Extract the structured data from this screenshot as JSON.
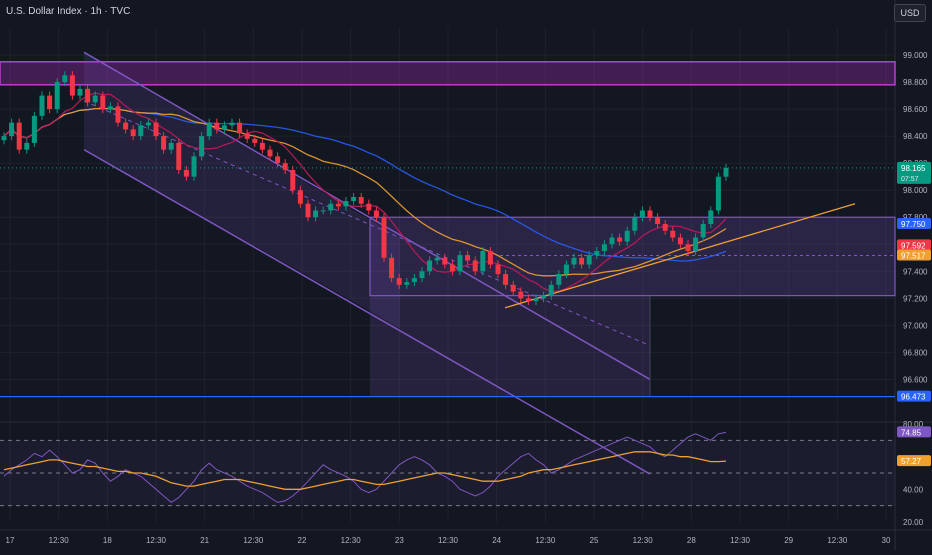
{
  "header": {
    "symbol_title": "U.S. Dollar Index · 1h · TVC",
    "currency": "USD"
  },
  "chart_data": [
    {
      "type": "candlestick",
      "title": "U.S. Dollar Index · 1h · TVC",
      "ylim": [
        96.3,
        99.2
      ],
      "y_ticks": [
        "99.000",
        "98.800",
        "98.600",
        "98.400",
        "98.200",
        "98.000",
        "97.800",
        "97.600",
        "97.400",
        "97.200",
        "97.000",
        "96.800",
        "96.600"
      ],
      "x_ticks": [
        "17",
        "12:30",
        "18",
        "12:30",
        "21",
        "12:30",
        "22",
        "12:30",
        "23",
        "12:30",
        "24",
        "12:30",
        "25",
        "12:30",
        "28",
        "12:30",
        "29",
        "12:30",
        "30"
      ],
      "price_labels": [
        {
          "value": 98.165,
          "label": "98.165",
          "sublabel": "07:57",
          "color": "#089981"
        },
        {
          "value": 97.75,
          "label": "97.750",
          "color": "#2962ff"
        },
        {
          "value": 97.592,
          "label": "97.592",
          "color": "#f23645"
        },
        {
          "value": 97.517,
          "label": "97.517",
          "color": "#f0a030"
        },
        {
          "value": 96.473,
          "label": "96.473",
          "color": "#2962ff"
        }
      ],
      "resistance_zone": [
        98.78,
        98.95
      ],
      "range_box": [
        97.22,
        97.8
      ],
      "horizontal_line": 96.473,
      "price_path": [
        98.4,
        98.5,
        98.3,
        98.35,
        98.55,
        98.7,
        98.6,
        98.8,
        98.85,
        98.7,
        98.75,
        98.65,
        98.7,
        98.6,
        98.62,
        98.5,
        98.45,
        98.4,
        98.48,
        98.5,
        98.4,
        98.3,
        98.35,
        98.15,
        98.1,
        98.25,
        98.4,
        98.5,
        98.45,
        98.48,
        98.5,
        98.42,
        98.38,
        98.35,
        98.3,
        98.25,
        98.2,
        98.15,
        98.0,
        97.9,
        97.8,
        97.85,
        97.85,
        97.9,
        97.88,
        97.92,
        97.95,
        97.9,
        97.85,
        97.8,
        97.5,
        97.35,
        97.3,
        97.32,
        97.35,
        97.4,
        97.48,
        97.5,
        97.45,
        97.4,
        97.52,
        97.48,
        97.4,
        97.55,
        97.45,
        97.38,
        97.3,
        97.25,
        97.2,
        97.18,
        97.2,
        97.22,
        97.3,
        97.38,
        97.45,
        97.5,
        97.45,
        97.52,
        97.55,
        97.6,
        97.65,
        97.62,
        97.7,
        97.8,
        97.85,
        97.8,
        97.75,
        97.7,
        97.65,
        97.6,
        97.55,
        97.65,
        97.75,
        97.85,
        98.1,
        98.165
      ]
    },
    {
      "type": "line",
      "title": "",
      "ylim": [
        20,
        80
      ],
      "y_ticks": [
        "80.00",
        "40.00",
        "20.00"
      ],
      "levels": [
        70,
        50,
        30
      ],
      "value_labels": [
        {
          "value": 74.85,
          "label": "74.85",
          "color": "#7e57c2"
        },
        {
          "value": 57.27,
          "label": "57.27",
          "color": "#f0a030"
        }
      ],
      "series": [
        {
          "color": "#7e57c2",
          "values": [
            48,
            52,
            55,
            58,
            62,
            60,
            64,
            60,
            55,
            50,
            52,
            58,
            56,
            50,
            45,
            48,
            52,
            50,
            48,
            44,
            40,
            36,
            32,
            35,
            40,
            45,
            52,
            56,
            52,
            50,
            48,
            45,
            42,
            40,
            38,
            35,
            32,
            33,
            36,
            40,
            45,
            50,
            55,
            52,
            50,
            48,
            45,
            40,
            38,
            40,
            45,
            50,
            55,
            58,
            60,
            58,
            55,
            50,
            48,
            45,
            40,
            38,
            36,
            38,
            42,
            48,
            52,
            56,
            60,
            62,
            58,
            55,
            50,
            52,
            55,
            58,
            60,
            62,
            64,
            66,
            68,
            70,
            72,
            70,
            68,
            66,
            62,
            60,
            64,
            68,
            72,
            74,
            72,
            70,
            74,
            74.85
          ]
        },
        {
          "color": "#f0a030",
          "values": [
            52,
            53,
            54,
            55,
            56,
            57,
            58,
            58,
            57,
            56,
            55,
            54,
            54,
            53,
            52,
            51,
            51,
            50,
            50,
            49,
            48,
            46,
            44,
            43,
            42,
            42,
            43,
            44,
            45,
            46,
            46,
            46,
            45,
            44,
            43,
            42,
            41,
            40,
            40,
            40,
            41,
            42,
            43,
            44,
            45,
            46,
            46,
            45,
            44,
            43,
            43,
            44,
            45,
            46,
            47,
            48,
            49,
            50,
            50,
            49,
            48,
            47,
            46,
            45,
            45,
            45,
            46,
            47,
            48,
            50,
            51,
            52,
            52,
            53,
            54,
            55,
            56,
            57,
            58,
            59,
            60,
            61,
            62,
            63,
            63,
            63,
            62,
            61,
            61,
            60,
            60,
            59,
            58,
            57,
            57,
            57.27
          ]
        }
      ]
    }
  ]
}
